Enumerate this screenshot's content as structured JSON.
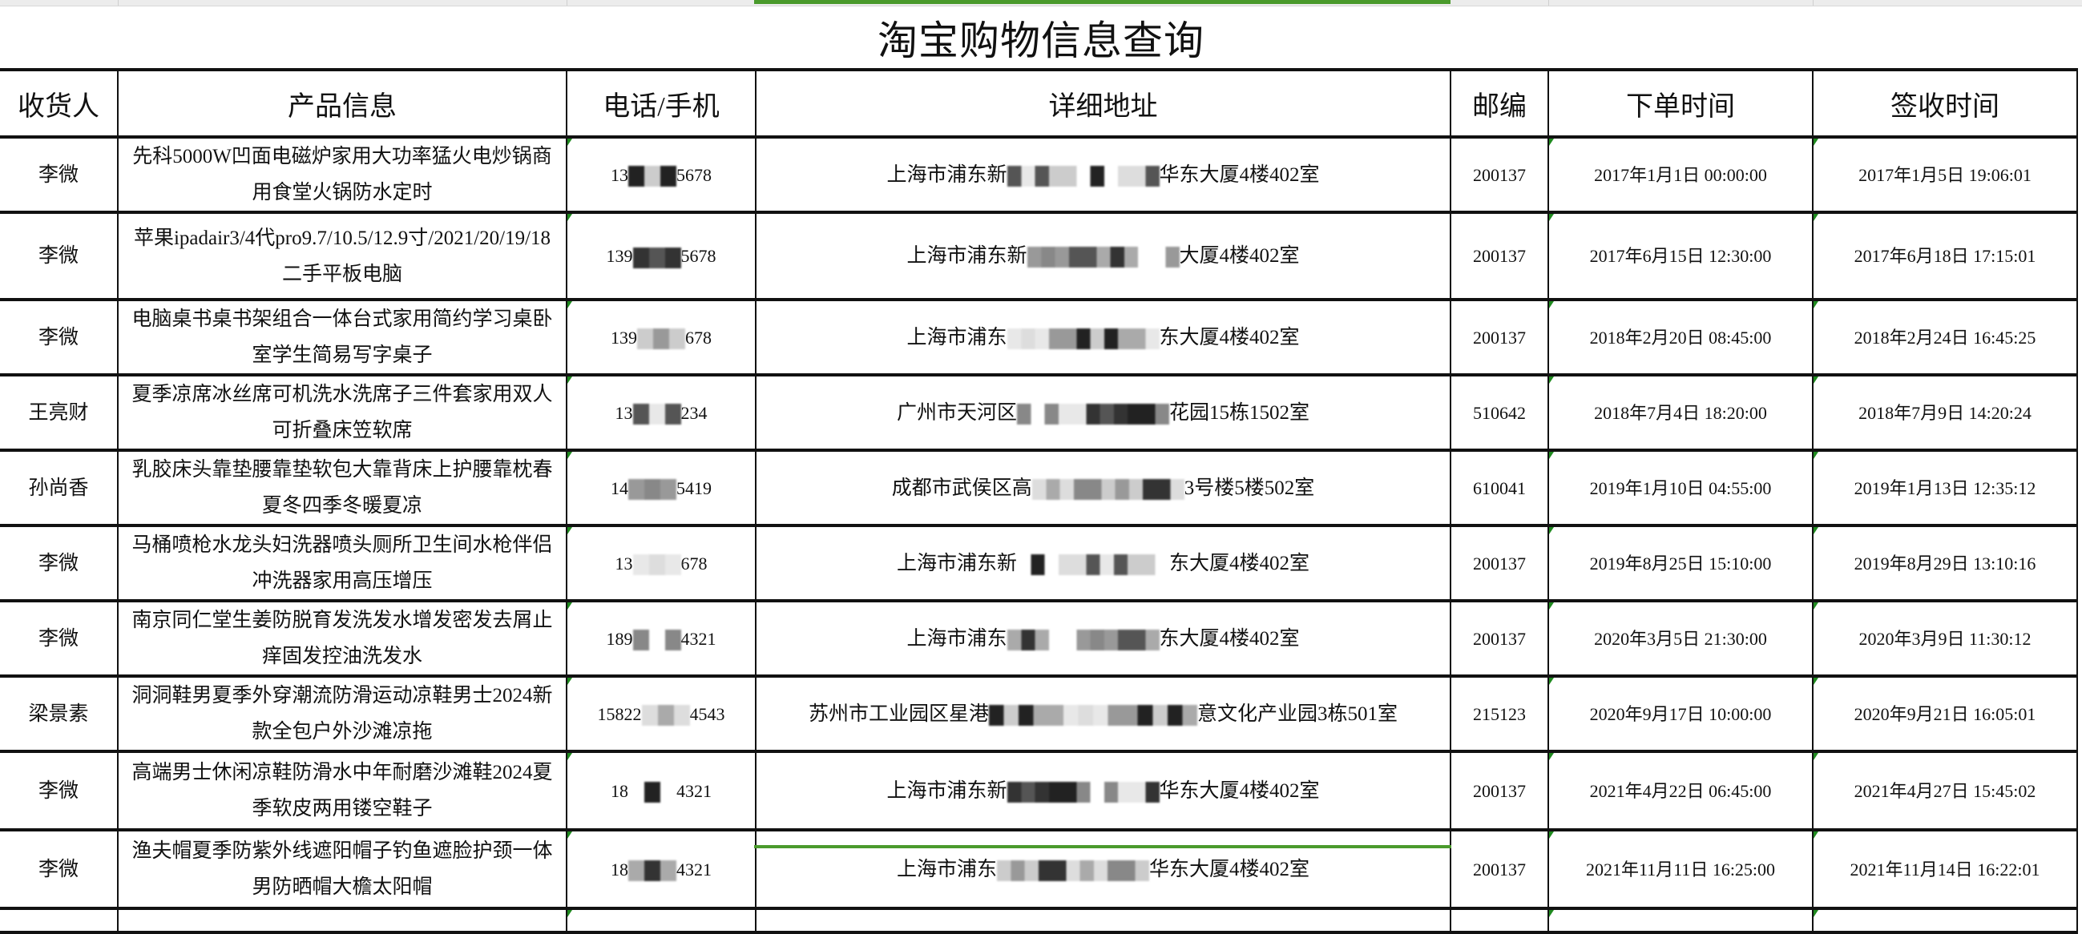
{
  "title": "淘宝购物信息查询",
  "columns": [
    "收货人",
    "产品信息",
    "电话/手机",
    "详细地址",
    "邮编",
    "下单时间",
    "签收时间"
  ],
  "colors": {
    "selection": "#4a9a2c",
    "note_marker": "#1f8a1f",
    "border": "#111111"
  },
  "rows": [
    {
      "name": "李微",
      "product": "先科5000W凹面电磁炉家用大功率猛火电炒锅商用食堂火锅防水定时",
      "phone_prefix": "13",
      "phone_suffix": "5678",
      "addr_prefix": "上海市浦东新",
      "addr_suffix": "华东大厦4楼402室",
      "zip": "200137",
      "order_time": "2017年1月1日 00:00:00",
      "sign_time": "2017年1月5日 19:06:01"
    },
    {
      "name": "李微",
      "product": "苹果ipadair3/4代pro9.7/10.5/12.9寸/2021/20/19/18二手平板电脑",
      "phone_prefix": "139",
      "phone_suffix": "5678",
      "addr_prefix": "上海市浦东新",
      "addr_suffix": "大厦4楼402室",
      "zip": "200137",
      "order_time": "2017年6月15日 12:30:00",
      "sign_time": "2017年6月18日 17:15:01"
    },
    {
      "name": "李微",
      "product": "电脑桌书桌书架组合一体台式家用简约学习桌卧室学生简易写字桌子",
      "phone_prefix": "139",
      "phone_suffix": "678",
      "addr_prefix": "上海市浦东",
      "addr_suffix": "东大厦4楼402室",
      "zip": "200137",
      "order_time": "2018年2月20日 08:45:00",
      "sign_time": "2018年2月24日 16:45:25"
    },
    {
      "name": "王亮财",
      "product": "夏季凉席冰丝席可机洗水洗席子三件套家用双人可折叠床笠软席",
      "phone_prefix": "13",
      "phone_suffix": "234",
      "addr_prefix": "广州市天河区",
      "addr_suffix": "花园15栋1502室",
      "zip": "510642",
      "order_time": "2018年7月4日 18:20:00",
      "sign_time": "2018年7月9日 14:20:24"
    },
    {
      "name": "孙尚香",
      "product": "乳胶床头靠垫腰靠垫软包大靠背床上护腰靠枕春夏冬四季冬暖夏凉",
      "phone_prefix": "14",
      "phone_suffix": "5419",
      "addr_prefix": "成都市武侯区高",
      "addr_suffix": "3号楼5楼502室",
      "zip": "610041",
      "order_time": "2019年1月10日 04:55:00",
      "sign_time": "2019年1月13日 12:35:12"
    },
    {
      "name": "李微",
      "product": "马桶喷枪水龙头妇洗器喷头厕所卫生间水枪伴侣冲洗器家用高压增压",
      "phone_prefix": "13",
      "phone_suffix": "678",
      "addr_prefix": "上海市浦东新",
      "addr_suffix": "东大厦4楼402室",
      "zip": "200137",
      "order_time": "2019年8月25日 15:10:00",
      "sign_time": "2019年8月29日 13:10:16"
    },
    {
      "name": "李微",
      "product": "南京同仁堂生姜防脱育发洗发水增发密发去屑止痒固发控油洗发水",
      "phone_prefix": "189",
      "phone_suffix": "4321",
      "addr_prefix": "上海市浦东",
      "addr_suffix": "东大厦4楼402室",
      "zip": "200137",
      "order_time": "2020年3月5日 21:30:00",
      "sign_time": "2020年3月9日 11:30:12"
    },
    {
      "name": "梁景素",
      "product": "洞洞鞋男夏季外穿潮流防滑运动凉鞋男士2024新款全包户外沙滩凉拖",
      "phone_prefix": "15822",
      "phone_suffix": "4543",
      "addr_prefix": "苏州市工业园区星港",
      "addr_suffix": "意文化产业园3栋501室",
      "zip": "215123",
      "order_time": "2020年9月17日 10:00:00",
      "sign_time": "2020年9月21日 16:05:01"
    },
    {
      "name": "李微",
      "product": "高端男士休闲凉鞋防滑水中年耐磨沙滩鞋2024夏季软皮两用镂空鞋子",
      "phone_prefix": "18",
      "phone_suffix": "4321",
      "addr_prefix": "上海市浦东新",
      "addr_suffix": "华东大厦4楼402室",
      "zip": "200137",
      "order_time": "2021年4月22日 06:45:00",
      "sign_time": "2021年4月27日 15:45:02"
    },
    {
      "name": "李微",
      "product": "渔夫帽夏季防紫外线遮阳帽子钓鱼遮脸护颈一体男防晒帽大檐太阳帽",
      "phone_prefix": "18",
      "phone_suffix": "4321",
      "addr_prefix": "上海市浦东",
      "addr_suffix": "华东大厦4楼402室",
      "zip": "200137",
      "order_time": "2021年11月11日 16:25:00",
      "sign_time": "2021年11月14日 16:22:01"
    }
  ]
}
